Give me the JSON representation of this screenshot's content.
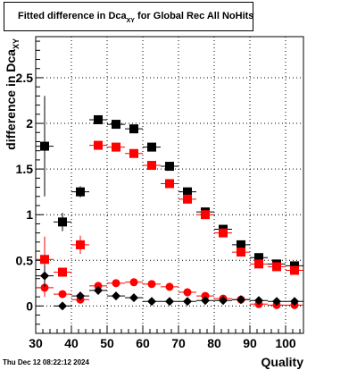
{
  "title": {
    "prefix": "Fitted difference in Dca",
    "subscript": "XY",
    "suffix": " for Global Rec All NoHits"
  },
  "footer": {
    "date": "Thu Dec 12 08:22:12 2024"
  },
  "chart_data": {
    "type": "scatter",
    "title": "Fitted difference in Dca_XY for Global Rec All NoHits",
    "xlabel": "Quality",
    "ylabel": "difference in Dca_XY",
    "xlim": [
      30,
      105
    ],
    "ylim": [
      -0.3,
      2.95
    ],
    "xticks": [
      30,
      40,
      50,
      60,
      70,
      80,
      90,
      100
    ],
    "yticks": [
      0,
      0.5,
      1,
      1.5,
      2,
      2.5
    ],
    "ytick_labels": [
      "0",
      "0.5",
      "1",
      "1.5",
      "2",
      "2.5"
    ],
    "grid": true,
    "x": [
      32.5,
      37.5,
      42.5,
      47.5,
      52.5,
      57.5,
      62.5,
      67.5,
      72.5,
      77.5,
      82.5,
      87.5,
      92.5,
      97.5,
      102.5
    ],
    "series": [
      {
        "marker": "square",
        "color": "#000000",
        "values": [
          1.75,
          0.92,
          1.25,
          2.04,
          1.99,
          1.94,
          1.74,
          1.53,
          1.25,
          1.03,
          0.84,
          0.67,
          0.53,
          0.46,
          0.44
        ],
        "errors": [
          0.55,
          0.1,
          0.06,
          0.02,
          0.02,
          0.02,
          0.02,
          0.02,
          0.02,
          0.02,
          0.02,
          0.02,
          0.02,
          0.02,
          0.02
        ]
      },
      {
        "marker": "square",
        "color": "#ff0000",
        "values": [
          0.51,
          0.37,
          0.67,
          1.76,
          1.74,
          1.67,
          1.54,
          1.34,
          1.17,
          1.0,
          0.8,
          0.59,
          0.46,
          0.43,
          0.39
        ],
        "errors": [
          0.25,
          0.05,
          0.1,
          0.02,
          0.02,
          0.02,
          0.02,
          0.02,
          0.02,
          0.02,
          0.02,
          0.02,
          0.02,
          0.02,
          0.02
        ]
      },
      {
        "marker": "circle",
        "color": "#ff0000",
        "values": [
          0.2,
          0.13,
          0.07,
          0.22,
          0.25,
          0.26,
          0.24,
          0.21,
          0.15,
          0.11,
          0.08,
          0.07,
          0.02,
          0.01,
          0.01
        ],
        "errors": [
          0.1,
          0.02,
          0.02,
          0.02,
          0.02,
          0.02,
          0.02,
          0.02,
          0.02,
          0.02,
          0.02,
          0.02,
          0.02,
          0.02,
          0.02
        ]
      },
      {
        "marker": "diamond",
        "color": "#000000",
        "values": [
          0.33,
          0.0,
          0.11,
          0.17,
          0.11,
          0.09,
          0.05,
          0.05,
          0.05,
          0.06,
          0.06,
          0.07,
          0.06,
          0.05,
          0.05
        ],
        "errors": [
          0.12,
          0.03,
          0.02,
          0.02,
          0.02,
          0.02,
          0.02,
          0.02,
          0.02,
          0.02,
          0.02,
          0.02,
          0.02,
          0.02,
          0.02
        ]
      }
    ]
  }
}
